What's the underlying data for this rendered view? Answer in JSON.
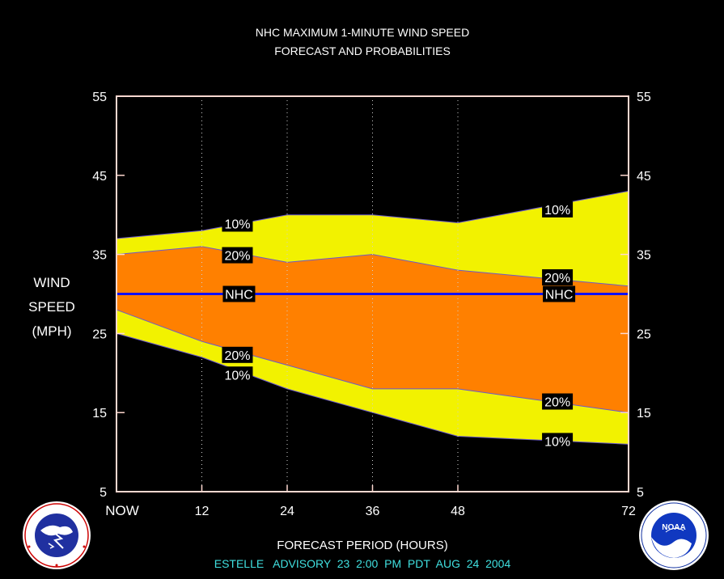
{
  "chart_data": {
    "type": "area",
    "title": "NHC MAXIMUM 1-MINUTE WIND SPEED",
    "subtitle": "FORECAST AND PROBABILITIES",
    "ylabel": [
      "WIND",
      "SPEED",
      "(MPH)"
    ],
    "xlabel": "FORECAST PERIOD (HOURS)",
    "footer": "ESTELLE   ADVISORY  23  2:00  PM  PDT  AUG  24  2004",
    "xlim": [
      0,
      72
    ],
    "ylim": [
      5,
      55
    ],
    "x_ticks": [
      {
        "value": 0,
        "label": "NOW"
      },
      {
        "value": 12,
        "label": "12"
      },
      {
        "value": 24,
        "label": "24"
      },
      {
        "value": 36,
        "label": "36"
      },
      {
        "value": 48,
        "label": "48"
      },
      {
        "value": 72,
        "label": "72"
      }
    ],
    "y_ticks": [
      5,
      15,
      25,
      35,
      45,
      55
    ],
    "x": [
      0,
      12,
      24,
      36,
      48,
      60,
      72
    ],
    "series": [
      {
        "key": "upper10",
        "label": "10%",
        "values": [
          37,
          38,
          40,
          40,
          39,
          41,
          43
        ]
      },
      {
        "key": "upper20",
        "label": "20%",
        "values": [
          35,
          36,
          34,
          35,
          33,
          32,
          31
        ]
      },
      {
        "key": "nhc",
        "label": "NHC",
        "values": [
          30,
          30,
          30,
          30,
          30,
          30,
          30
        ]
      },
      {
        "key": "lower20",
        "label": "20%",
        "values": [
          28,
          24,
          21,
          18,
          18,
          16.5,
          15
        ]
      },
      {
        "key": "lower10",
        "label": "10%",
        "values": [
          25,
          22,
          18,
          15,
          12,
          11.5,
          11
        ]
      }
    ],
    "annotations": [
      {
        "text": "10%",
        "x": 17,
        "y": 38.9
      },
      {
        "text": "20%",
        "x": 17,
        "y": 34.9
      },
      {
        "text": "NHC",
        "x": 17,
        "y": 30
      },
      {
        "text": "20%",
        "x": 17,
        "y": 22.3
      },
      {
        "text": "10%",
        "x": 17,
        "y": 19.8
      },
      {
        "text": "10%",
        "x": 62,
        "y": 40.7
      },
      {
        "text": "20%",
        "x": 62,
        "y": 32.1
      },
      {
        "text": "NHC",
        "x": 62,
        "y": 30
      },
      {
        "text": "20%",
        "x": 62,
        "y": 16.4
      },
      {
        "text": "10%",
        "x": 62,
        "y": 11.4
      }
    ],
    "colors": {
      "outer_band": "#f2f200",
      "inner_band": "#ff8000",
      "nhc_line": "#1010ff",
      "frame": "#ffd8d0",
      "footer_text": "#40e0e0"
    }
  },
  "logos": {
    "left": {
      "name": "NATIONAL WEATHER SERVICE"
    },
    "right": {
      "name": "NOAA"
    }
  }
}
